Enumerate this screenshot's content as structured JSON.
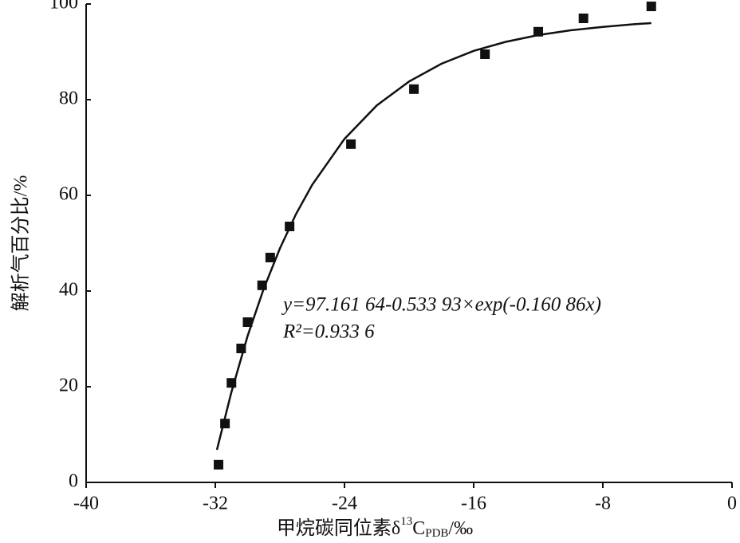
{
  "chart_data": {
    "type": "scatter",
    "x_label": {
      "main": "甲烷碳同位素δ",
      "sup": "13",
      "base": "C",
      "sub": "PDB",
      "unit": "/‰"
    },
    "y_label": "解析气百分比/%",
    "annotations": [
      "y=97.161 64-0.533 93×exp(-0.160 86x)",
      "R²=0.933 6"
    ],
    "xlim": [
      -40,
      0
    ],
    "xticks": [
      -40,
      -32,
      -24,
      -16,
      -8,
      0
    ],
    "ylim": [
      0,
      100
    ],
    "yticks": [
      0,
      20,
      40,
      60,
      80,
      100
    ],
    "color": "#111111",
    "series": [
      {
        "x": [
          -31.8,
          -31.4,
          -31.0,
          -30.4,
          -30.0,
          -29.1,
          -28.6,
          -27.4,
          -23.6,
          -19.7,
          -15.3,
          -12.0,
          -9.2,
          -5.0
        ],
        "values": [
          3.7,
          12.3,
          20.8,
          28,
          33.5,
          41.2,
          47,
          53.5,
          70.7,
          82.2,
          89.5,
          94.2,
          97,
          99.5
        ]
      }
    ],
    "fit": {
      "x": [
        -31.9,
        -31,
        -30,
        -29,
        -28,
        -27,
        -26,
        -24,
        -22,
        -20,
        -18,
        -16,
        -14,
        -12,
        -10,
        -8,
        -6,
        -5
      ],
      "values": [
        6.8,
        18.9,
        30.6,
        40.5,
        48.9,
        56.1,
        62.2,
        71.8,
        78.8,
        83.8,
        87.5,
        90.2,
        92.1,
        93.5,
        94.5,
        95.2,
        95.8,
        96.0
      ]
    }
  }
}
